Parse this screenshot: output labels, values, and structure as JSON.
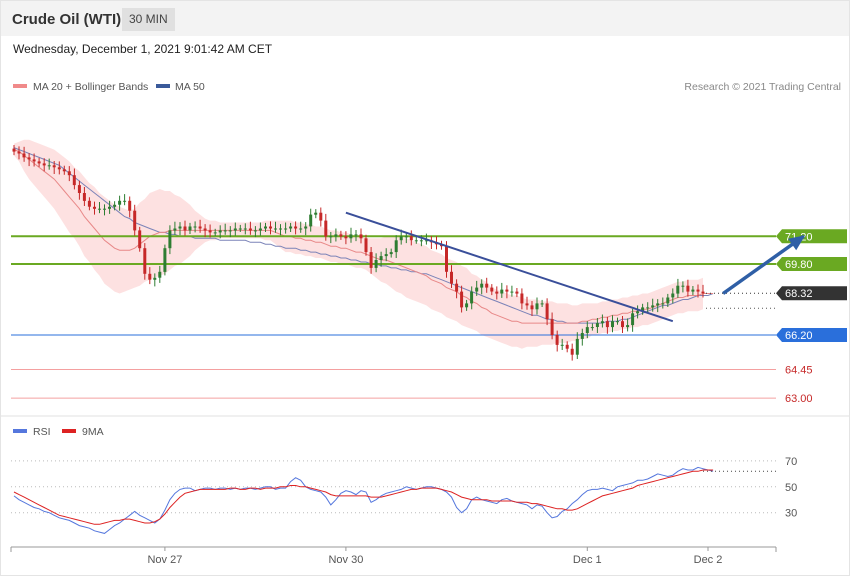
{
  "header": {
    "instrument": "Crude Oil (WTI)",
    "timeframe": "30 MIN"
  },
  "datetime": "Wednesday, December 1, 2021 9:01:42 AM CET",
  "legend": {
    "ma20_bb": "MA 20 + Bollinger Bands",
    "ma50": "MA 50",
    "rsi": "RSI",
    "ma9": "9MA"
  },
  "credit": "Research © 2021 Trading Central",
  "colors": {
    "bullish": "#2e7d32",
    "bearish": "#c62828",
    "band": "#fde1e1",
    "ma20": "#e88888",
    "ma50": "#7b83b8",
    "resistance": "#6aa922",
    "support_blue": "#2a6fdb",
    "support_red": "#f4a0a0",
    "trend": "#3a4f9a",
    "arrow": "#2f5fa6",
    "rsi": "#5577dd",
    "ma9_line": "#dd2222"
  },
  "levels": [
    {
      "value": 71.2,
      "label": "71.20",
      "style": "resistance"
    },
    {
      "value": 69.8,
      "label": "69.80",
      "style": "resistance"
    },
    {
      "value": 68.32,
      "label": "68.32",
      "style": "last"
    },
    {
      "value": 66.2,
      "label": "66.20",
      "style": "support_blue"
    },
    {
      "value": 64.45,
      "label": "64.45",
      "style": "support_red"
    },
    {
      "value": 63.0,
      "label": "63.00",
      "style": "support_red"
    }
  ],
  "chart_data": [
    {
      "type": "candlestick",
      "title": "Crude Oil (WTI)",
      "timeframe": "30 MIN",
      "ylim": [
        62.7,
        77.2
      ],
      "x_ticks": [
        "Nov 27",
        "Nov 30",
        "Dec 1",
        "Dec 2"
      ],
      "last_price": 68.32,
      "close": [
        75.5,
        75.4,
        75.2,
        75.1,
        75.0,
        74.9,
        74.8,
        74.8,
        74.7,
        74.6,
        74.5,
        74.3,
        73.8,
        73.4,
        73.0,
        72.7,
        72.6,
        72.6,
        72.6,
        72.7,
        72.8,
        73.0,
        73.0,
        72.5,
        71.5,
        70.6,
        69.3,
        69.0,
        69.1,
        69.4,
        70.6,
        71.5,
        71.6,
        71.7,
        71.5,
        71.7,
        71.7,
        71.6,
        71.5,
        71.4,
        71.4,
        71.5,
        71.5,
        71.5,
        71.6,
        71.6,
        71.6,
        71.5,
        71.5,
        71.6,
        71.7,
        71.6,
        71.6,
        71.6,
        71.6,
        71.7,
        71.6,
        71.6,
        71.7,
        72.3,
        72.4,
        72.0,
        71.2,
        71.2,
        71.3,
        71.2,
        71.1,
        71.3,
        71.3,
        71.1,
        70.4,
        69.6,
        70.0,
        70.2,
        70.3,
        70.4,
        71.0,
        71.2,
        71.2,
        71.0,
        71.0,
        71.0,
        71.0,
        70.9,
        70.8,
        70.7,
        69.4,
        68.8,
        68.4,
        67.6,
        67.8,
        68.4,
        68.6,
        68.8,
        68.6,
        68.4,
        68.3,
        68.5,
        68.4,
        68.4,
        68.3,
        67.8,
        67.7,
        67.5,
        67.8,
        67.8,
        67.0,
        66.2,
        65.7,
        65.7,
        65.5,
        65.2,
        66.0,
        66.3,
        66.6,
        66.6,
        66.8,
        66.9,
        66.6,
        66.9,
        66.9,
        66.6,
        66.7,
        67.3,
        67.4,
        67.6,
        67.6,
        67.7,
        67.8,
        67.8,
        68.1,
        68.3,
        68.7,
        68.7,
        68.4,
        68.5,
        68.4,
        68.32
      ],
      "ma20": [
        75.6,
        75.5,
        75.3,
        75.1,
        74.9,
        74.7,
        74.5,
        74.3,
        74.1,
        73.8,
        73.5,
        73.2,
        72.9,
        72.6,
        72.2,
        71.9,
        71.6,
        71.3,
        71.0,
        70.8,
        70.6,
        70.5,
        70.5,
        70.5,
        70.6,
        70.8,
        71.0,
        71.2,
        71.3,
        71.4,
        71.4,
        71.5,
        71.5,
        71.5,
        71.5,
        71.5,
        71.5,
        71.5,
        71.5,
        71.5,
        71.5,
        71.5,
        71.5,
        71.5,
        71.5,
        71.5,
        71.5,
        71.5,
        71.5,
        71.5,
        71.5,
        71.5,
        71.4,
        71.3,
        71.2,
        71.2,
        71.1,
        71.1,
        71.0,
        71.0,
        70.9,
        70.9,
        70.8,
        70.7,
        70.7,
        70.6,
        70.6,
        70.5,
        70.4,
        70.4,
        70.3,
        70.2,
        70.1,
        70.0,
        70.0,
        69.9,
        69.8,
        69.7,
        69.6,
        69.5,
        69.4,
        69.3,
        69.2,
        69.0,
        68.9,
        68.8,
        68.6,
        68.5,
        68.4,
        68.2,
        68.1,
        67.9,
        67.8,
        67.6,
        67.5,
        67.3,
        67.2,
        67.1,
        67.0,
        66.9,
        66.9,
        66.8,
        66.8,
        66.8,
        66.8,
        66.8,
        66.8,
        66.8,
        66.8,
        66.8,
        66.8,
        66.8,
        66.8,
        66.9,
        66.9,
        67.0,
        67.0,
        67.1,
        67.1,
        67.2,
        67.2,
        67.3,
        67.3,
        67.4,
        67.4,
        67.5,
        67.5,
        67.6,
        67.7,
        67.8,
        67.9,
        68.0,
        68.1,
        68.1,
        68.2,
        68.2,
        68.2,
        68.3,
        68.3,
        68.3
      ],
      "ma50": [
        75.7,
        75.6,
        75.5,
        75.4,
        75.3,
        75.2,
        75.1,
        75.0,
        74.9,
        74.8,
        74.6,
        74.4,
        74.2,
        74.0,
        73.8,
        73.6,
        73.4,
        73.2,
        73.0,
        72.8,
        72.6,
        72.4,
        72.2,
        72.1,
        71.9,
        71.8,
        71.7,
        71.6,
        71.5,
        71.4,
        71.4,
        71.3,
        71.3,
        71.2,
        71.2,
        71.2,
        71.1,
        71.1,
        71.1,
        71.1,
        71.1,
        71.0,
        71.0,
        71.0,
        71.0,
        71.0,
        71.0,
        70.9,
        70.9,
        70.9,
        70.8,
        70.8,
        70.7,
        70.7,
        70.6,
        70.6,
        70.6,
        70.5,
        70.5,
        70.4,
        70.4,
        70.3,
        70.3,
        70.2,
        70.2,
        70.1,
        70.1,
        70.0,
        70.0,
        69.9,
        69.9,
        69.8,
        69.8,
        69.7,
        69.7,
        69.6,
        69.6,
        69.5,
        69.5,
        69.4,
        69.4,
        69.3,
        69.3,
        69.2,
        69.1,
        69.0,
        68.9,
        68.8,
        68.7,
        68.6,
        68.5,
        68.4,
        68.3,
        68.2,
        68.1,
        68.0,
        67.9,
        67.8,
        67.7,
        67.6,
        67.5,
        67.4,
        67.3,
        67.2,
        67.2,
        67.1,
        67.0,
        67.0,
        66.9,
        66.9,
        66.8,
        66.8,
        66.8,
        66.8,
        66.8,
        66.8,
        66.8,
        66.8,
        66.9,
        66.9,
        66.9,
        67.0,
        67.0,
        67.1,
        67.2,
        67.3,
        67.4,
        67.5,
        67.6,
        67.7,
        67.7,
        67.8,
        67.9,
        68.0,
        68.0,
        68.1,
        68.2,
        68.2,
        68.2,
        68.3
      ],
      "bb_width": [
        0.3,
        0.5,
        0.8,
        1.0,
        1.1,
        1.2,
        1.3,
        1.4,
        1.5,
        1.6,
        1.7,
        1.8,
        1.8,
        1.9,
        2.0,
        2.0,
        2.1,
        2.1,
        2.2,
        2.2,
        2.2,
        2.2,
        2.1,
        2.0,
        2.0,
        2.1,
        2.1,
        2.2,
        2.2,
        2.2,
        2.1,
        2.0,
        1.8,
        1.7,
        1.5,
        1.3,
        1.0,
        0.8,
        0.6,
        0.5,
        0.5,
        0.4,
        0.4,
        0.4,
        0.4,
        0.4,
        0.4,
        0.4,
        0.4,
        0.4,
        0.5,
        0.5,
        0.6,
        0.7,
        0.8,
        0.8,
        0.8,
        0.8,
        0.8,
        0.8,
        0.8,
        0.8,
        0.8,
        0.8,
        0.8,
        0.8,
        0.8,
        0.8,
        0.8,
        0.8,
        0.8,
        0.9,
        1.0,
        1.1,
        1.2,
        1.3,
        1.4,
        1.4,
        1.5,
        1.5,
        1.5,
        1.5,
        1.5,
        1.5,
        1.5,
        1.5,
        1.5,
        1.5,
        1.5,
        1.5,
        1.5,
        1.4,
        1.4,
        1.4,
        1.4,
        1.3,
        1.3,
        1.3,
        1.3,
        1.3,
        1.3,
        1.3,
        1.2,
        1.2,
        1.2,
        1.1,
        1.1,
        1.1,
        1.0,
        1.0,
        1.0,
        0.9,
        0.9,
        0.9,
        0.9,
        0.8,
        0.8,
        0.8,
        0.8,
        0.8,
        0.8,
        0.8,
        0.8,
        0.8,
        0.8,
        0.8,
        0.8,
        0.8,
        0.8,
        0.8,
        0.8,
        0.8,
        0.8,
        0.8,
        0.8,
        0.8,
        0.8,
        0.8,
        0.8,
        0.8
      ],
      "trendline": {
        "from": [
          66,
          72.4
        ],
        "to": [
          131,
          66.9
        ]
      },
      "arrow": {
        "from": [
          141,
          68.3
        ],
        "to": [
          157,
          71.2
        ]
      }
    },
    {
      "type": "line",
      "title": "RSI",
      "levels": [
        {
          "value": 70,
          "label": "70"
        },
        {
          "value": 50,
          "label": "50"
        },
        {
          "value": 30,
          "label": "30"
        }
      ],
      "ylim": [
        5,
        80
      ],
      "series": [
        {
          "name": "RSI",
          "values": [
            43,
            40,
            38,
            36,
            34,
            33,
            31,
            30,
            28,
            26,
            25,
            24,
            22,
            20,
            19,
            18,
            16,
            15,
            14,
            17,
            20,
            22,
            25,
            28,
            31,
            28,
            26,
            24,
            22,
            25,
            32,
            40,
            45,
            48,
            49,
            49,
            47,
            48,
            49,
            49,
            48,
            49,
            49,
            48,
            49,
            48,
            49,
            49,
            48,
            49,
            50,
            50,
            48,
            49,
            49,
            54,
            57,
            55,
            50,
            48,
            47,
            46,
            42,
            36,
            40,
            45,
            47,
            46,
            44,
            47,
            46,
            38,
            40,
            43,
            45,
            46,
            47,
            48,
            50,
            49,
            48,
            49,
            50,
            50,
            49,
            48,
            46,
            42,
            34,
            30,
            33,
            40,
            42,
            40,
            39,
            38,
            37,
            40,
            41,
            39,
            38,
            37,
            36,
            33,
            36,
            35,
            30,
            26,
            27,
            31,
            33,
            37,
            40,
            44,
            47,
            48,
            48,
            49,
            48,
            47,
            50,
            51,
            52,
            53,
            55,
            55,
            56,
            58,
            60,
            59,
            58,
            59,
            62,
            64,
            63,
            63,
            65,
            64,
            63,
            62
          ]
        },
        {
          "name": "9MA",
          "values": [
            46,
            44,
            42,
            40,
            38,
            36,
            34,
            32,
            30,
            28,
            27,
            26,
            25,
            24,
            23,
            22,
            21,
            21,
            22,
            23,
            24,
            24,
            25,
            25,
            24,
            23,
            22,
            22,
            23,
            25,
            29,
            34,
            38,
            42,
            45,
            46,
            47,
            48,
            48,
            48,
            48,
            48,
            48,
            49,
            49,
            48,
            48,
            49,
            49,
            48,
            49,
            49,
            49,
            50,
            50,
            51,
            51,
            50,
            50,
            49,
            48,
            47,
            46,
            44,
            43,
            43,
            43,
            43,
            43,
            43,
            43,
            42,
            42,
            42,
            43,
            44,
            45,
            46,
            47,
            48,
            48,
            49,
            49,
            49,
            49,
            48,
            47,
            46,
            44,
            42,
            41,
            40,
            40,
            40,
            40,
            39,
            39,
            39,
            39,
            39,
            38,
            38,
            38,
            37,
            37,
            36,
            35,
            34,
            33,
            33,
            32,
            32,
            33,
            35,
            37,
            39,
            41,
            43,
            44,
            45,
            46,
            47,
            48,
            49,
            51,
            52,
            53,
            54,
            55,
            56,
            57,
            58,
            59,
            60,
            61,
            62,
            62,
            63,
            63,
            63
          ]
        }
      ]
    }
  ]
}
